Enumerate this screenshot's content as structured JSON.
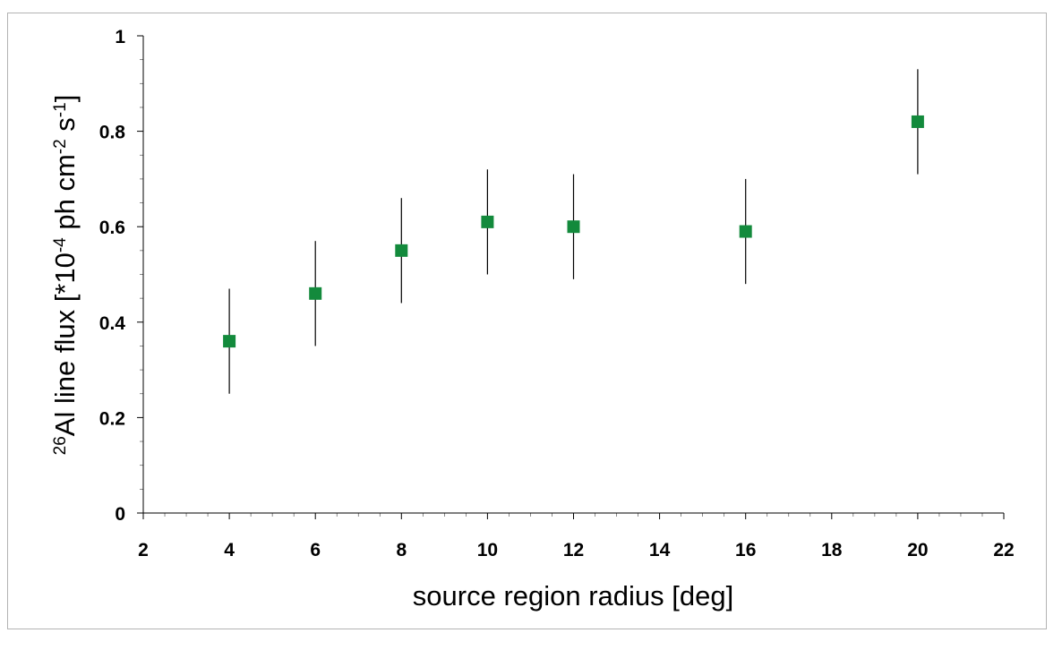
{
  "chart_data": {
    "type": "scatter",
    "title": "",
    "xlabel": "source region radius [deg]",
    "ylabel": {
      "parts": [
        {
          "text": "26",
          "sup": true
        },
        {
          "text": "Al line flux [*10",
          "sup": false
        },
        {
          "text": "-4",
          "sup": true
        },
        {
          "text": " ph cm",
          "sup": false
        },
        {
          "text": "-2",
          "sup": true
        },
        {
          "text": " s",
          "sup": false
        },
        {
          "text": "-1",
          "sup": true
        },
        {
          "text": "]",
          "sup": false
        }
      ]
    },
    "xlim": [
      2,
      22
    ],
    "ylim": [
      0,
      1
    ],
    "x_ticks": [
      "2",
      "4",
      "6",
      "8",
      "10",
      "12",
      "14",
      "16",
      "18",
      "20",
      "22"
    ],
    "y_ticks": [
      "0",
      "0.2",
      "0.4",
      "0.6",
      "0.8",
      "1"
    ],
    "grid": false,
    "marker_color": "#138a3c",
    "series": [
      {
        "x": [
          4,
          6,
          8,
          10,
          12,
          16,
          20
        ],
        "y": [
          0.36,
          0.46,
          0.55,
          0.61,
          0.6,
          0.59,
          0.82
        ],
        "y_err_low": [
          0.25,
          0.35,
          0.44,
          0.5,
          0.49,
          0.48,
          0.71
        ],
        "y_err_high": [
          0.47,
          0.57,
          0.66,
          0.72,
          0.71,
          0.7,
          0.93
        ]
      }
    ]
  }
}
